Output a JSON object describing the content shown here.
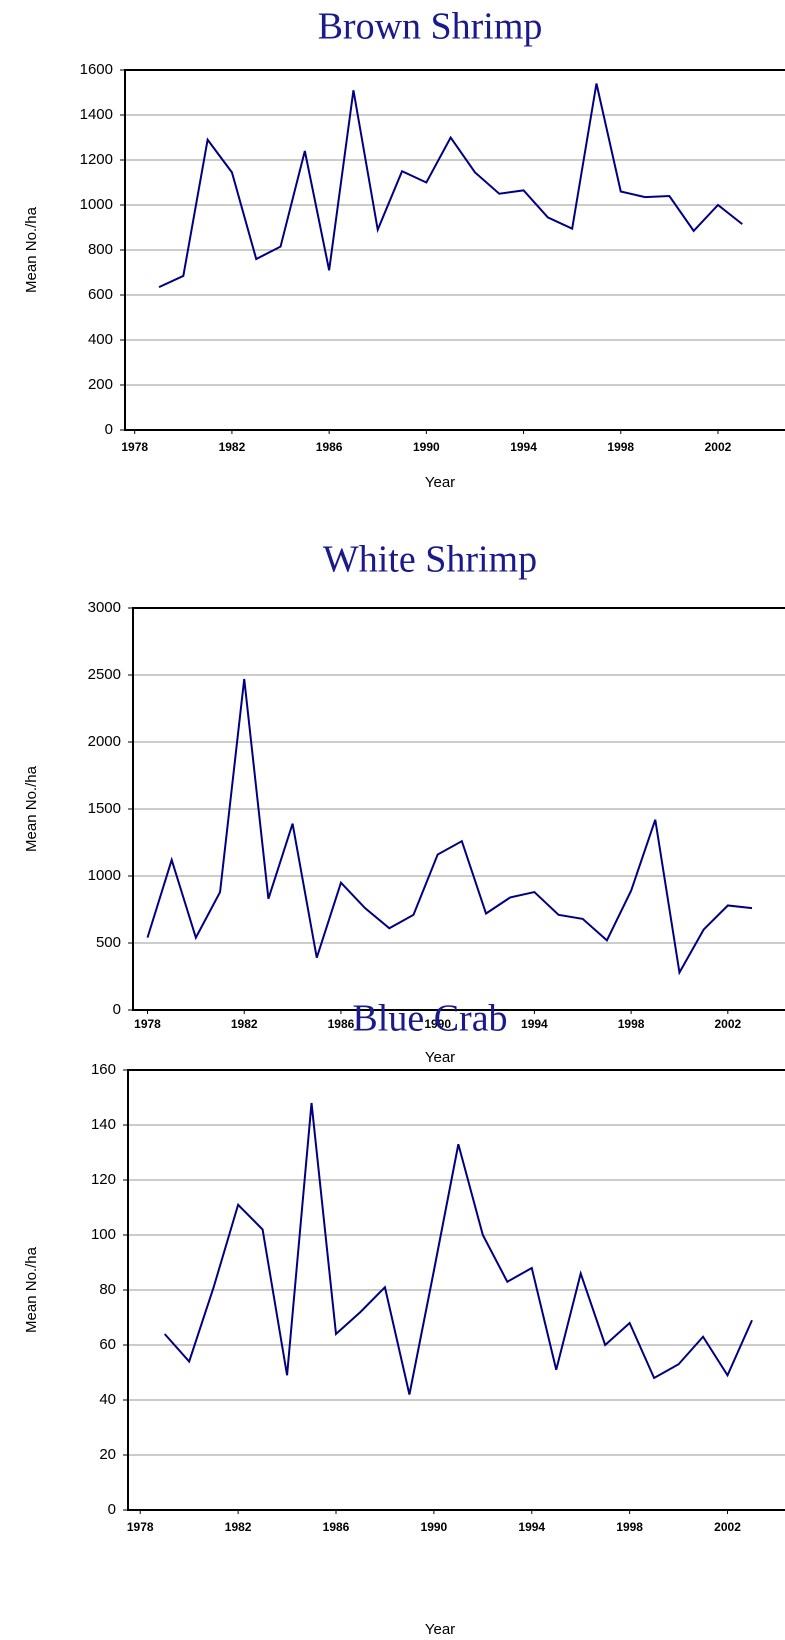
{
  "chart_data": [
    {
      "type": "line",
      "title": "Brown Shrimp",
      "x_label": "Year",
      "y_label": "Mean No./ha",
      "color": "#000080",
      "x": [
        1979,
        1980,
        1981,
        1982,
        1983,
        1984,
        1985,
        1986,
        1987,
        1988,
        1989,
        1990,
        1991,
        1992,
        1993,
        1994,
        1995,
        1996,
        1997,
        1998,
        1999,
        2000,
        2001,
        2002,
        2003
      ],
      "values": [
        635,
        685,
        1290,
        1145,
        760,
        815,
        1240,
        710,
        1510,
        890,
        1150,
        1100,
        1300,
        1145,
        1050,
        1065,
        945,
        895,
        1540,
        1060,
        1035,
        1040,
        885,
        1000,
        915
      ],
      "xlim": [
        1977.6,
        2003.4
      ],
      "xticks": [
        1978,
        1982,
        1986,
        1990,
        1994,
        1998,
        2002
      ],
      "ylim": [
        0,
        1600
      ],
      "yticks": [
        0,
        200,
        400,
        600,
        800,
        1000,
        1200,
        1400,
        1600
      ],
      "grid": true
    },
    {
      "type": "line",
      "title": "White Shrimp",
      "x_label": "Year",
      "y_label": "Mean No./ha",
      "color": "#000080",
      "x": [
        1978,
        1979,
        1980,
        1981,
        1982,
        1983,
        1984,
        1985,
        1986,
        1987,
        1988,
        1989,
        1990,
        1991,
        1992,
        1993,
        1994,
        1995,
        1996,
        1997,
        1998,
        1999,
        2000,
        2001,
        2002,
        2003
      ],
      "values": [
        540,
        1120,
        540,
        880,
        2470,
        830,
        1390,
        390,
        950,
        760,
        610,
        710,
        1160,
        1260,
        720,
        840,
        880,
        710,
        680,
        520,
        890,
        1420,
        280,
        600,
        780,
        760
      ],
      "xlim": [
        1977.4,
        2003
      ],
      "xticks": [
        1978,
        1982,
        1986,
        1990,
        1994,
        1998,
        2002
      ],
      "ylim": [
        0,
        3000
      ],
      "yticks": [
        0,
        500,
        1000,
        1500,
        2000,
        2500,
        3000
      ],
      "grid": true
    },
    {
      "type": "line",
      "title": "Blue Crab",
      "x_label": "Year",
      "y_label": "Mean No./ha",
      "color": "#000080",
      "x": [
        1979,
        1980,
        1981,
        1982,
        1983,
        1984,
        1985,
        1986,
        1987,
        1988,
        1989,
        1990,
        1991,
        1992,
        1993,
        1994,
        1995,
        1996,
        1997,
        1998,
        1999,
        2000,
        2001,
        2002,
        2003
      ],
      "values": [
        64,
        54,
        81,
        111,
        102,
        49,
        148,
        64,
        72,
        81,
        42,
        87,
        133,
        100,
        83,
        88,
        51,
        86,
        60,
        68,
        48,
        53,
        63,
        49,
        69
      ],
      "xlim": [
        1977.5,
        2003
      ],
      "xticks": [
        1978,
        1982,
        1986,
        1990,
        1994,
        1998,
        2002
      ],
      "ylim": [
        0,
        160
      ],
      "yticks": [
        0,
        20,
        40,
        60,
        80,
        100,
        120,
        140,
        160
      ],
      "grid": true
    }
  ]
}
